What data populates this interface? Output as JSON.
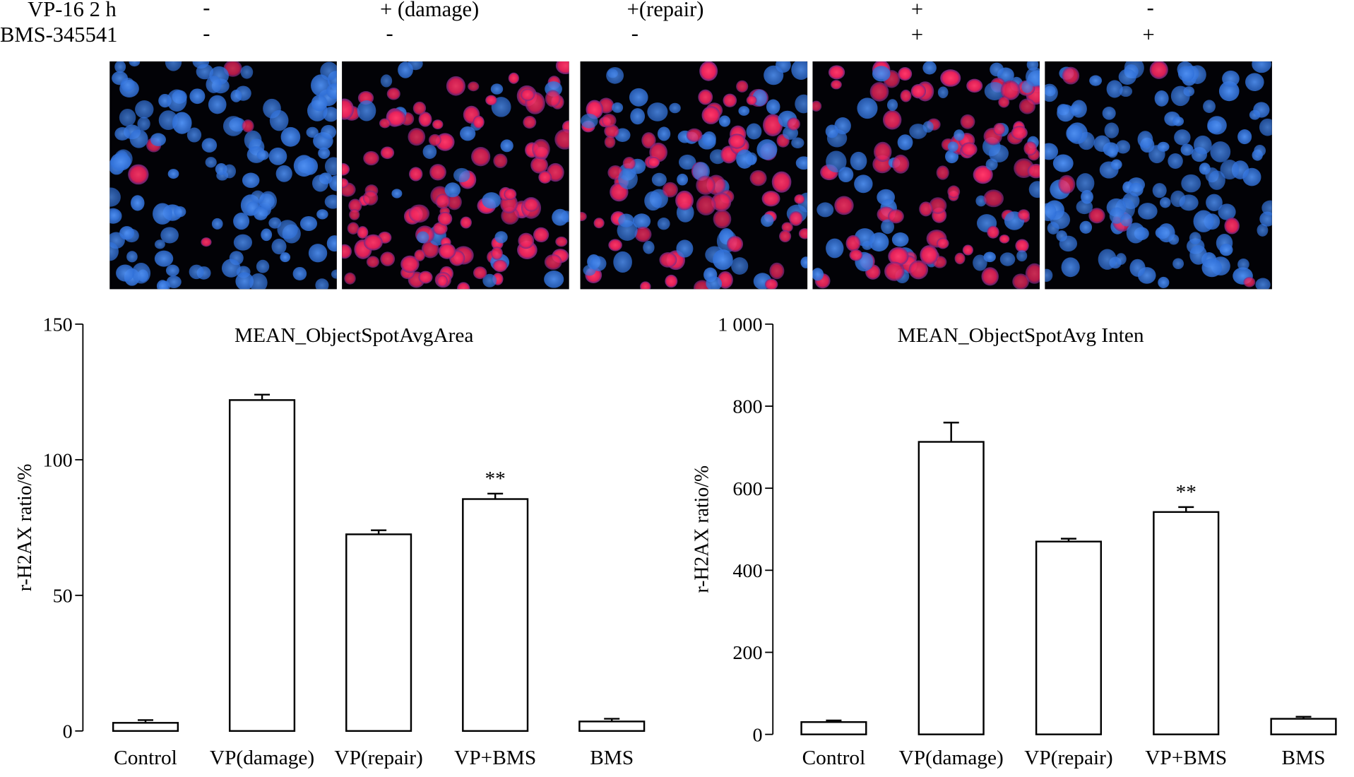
{
  "treatment_table": {
    "rows": [
      {
        "label": "VP-16 2 h",
        "markers": [
          "-",
          "+ (damage)",
          "+(repair)",
          "+",
          "-"
        ]
      },
      {
        "label": "BMS-345541",
        "markers": [
          "-",
          "-",
          "-",
          "+",
          "+"
        ]
      }
    ]
  },
  "micrographs": {
    "panels": [
      {
        "red_fraction": 0.05
      },
      {
        "red_fraction": 0.85
      },
      {
        "red_fraction": 0.5
      },
      {
        "red_fraction": 0.6
      },
      {
        "red_fraction": 0.03
      }
    ],
    "colors": {
      "background": "#020206",
      "nucleus_blue": "#2f6fd8",
      "focus_red": "#e8205a"
    }
  },
  "chart_data": [
    {
      "type": "bar",
      "title": "MEAN_ObjectSpotAvgArea",
      "ylabel": "r-H2AX ratio/%",
      "xlabel": "",
      "categories": [
        "Control",
        "VP(damage)",
        "VP(repair)",
        "VP+BMS",
        "BMS"
      ],
      "values": [
        3,
        122,
        72.5,
        85.5,
        3.5
      ],
      "errors": [
        1,
        2,
        1.5,
        2,
        1
      ],
      "annotations": [
        "",
        "",
        "",
        "**",
        ""
      ],
      "ylim": [
        0,
        150
      ],
      "yticks": [
        0,
        50,
        100,
        150
      ],
      "ytick_labels": [
        "0",
        "50",
        "100",
        "150"
      ],
      "grid": false,
      "bar_fill": "#ffffff",
      "bar_edge": "#000000"
    },
    {
      "type": "bar",
      "title": "MEAN_ObjectSpotAvg Inten",
      "ylabel": "r-H2AX ratio/%",
      "xlabel": "",
      "categories": [
        "Control",
        "VP(damage)",
        "VP(repair)",
        "VP+BMS",
        "BMS"
      ],
      "values": [
        30,
        713,
        470,
        542,
        38
      ],
      "errors": [
        4,
        47,
        7,
        12,
        5
      ],
      "annotations": [
        "",
        "",
        "",
        "**",
        ""
      ],
      "ylim": [
        0,
        1000
      ],
      "yticks": [
        0,
        200,
        400,
        600,
        800,
        1000
      ],
      "ytick_labels": [
        "0",
        "200",
        "400",
        "600",
        "800",
        "1 000"
      ],
      "grid": false,
      "bar_fill": "#ffffff",
      "bar_edge": "#000000"
    }
  ]
}
